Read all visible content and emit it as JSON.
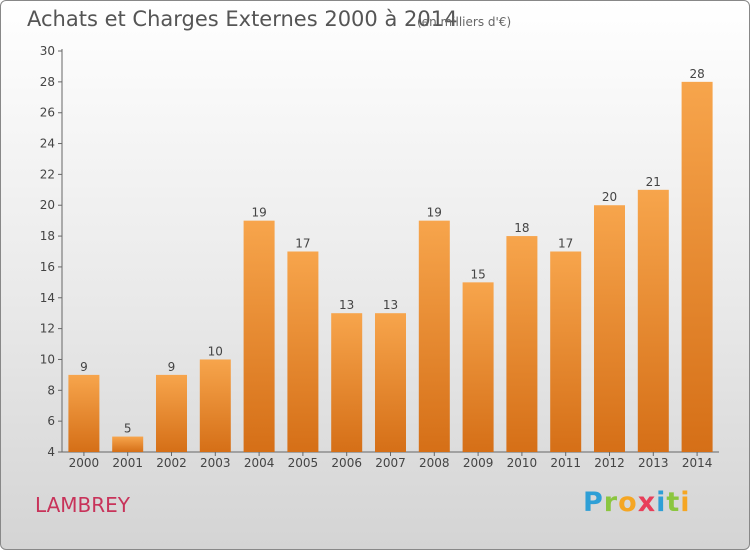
{
  "chart_data": {
    "type": "bar",
    "title": "Achats et Charges Externes 2000 à 2014",
    "subtitle": "(en milliers d'€)",
    "categories": [
      "2000",
      "2001",
      "2002",
      "2003",
      "2004",
      "2005",
      "2006",
      "2007",
      "2008",
      "2009",
      "2010",
      "2011",
      "2012",
      "2013",
      "2014"
    ],
    "values": [
      9,
      5,
      9,
      10,
      19,
      17,
      13,
      13,
      19,
      15,
      18,
      17,
      20,
      21,
      28
    ],
    "ylim": [
      4,
      30
    ],
    "yticks": [
      4,
      6,
      8,
      10,
      12,
      14,
      16,
      18,
      20,
      22,
      24,
      26,
      28,
      30
    ],
    "xlabel": "",
    "ylabel": "",
    "grid": false,
    "bar_color_top": "#f7a54c",
    "bar_color_bottom": "#d56f17"
  },
  "footer": {
    "commune": "LAMBREY",
    "brand_letters": [
      "P",
      "r",
      "o",
      "x",
      "i",
      "t",
      "i"
    ],
    "brand_colors": [
      "#2e9fd6",
      "#8bc63f",
      "#f5a623",
      "#e83e5a",
      "#2e9fd6",
      "#8bc63f",
      "#f5a623"
    ]
  }
}
